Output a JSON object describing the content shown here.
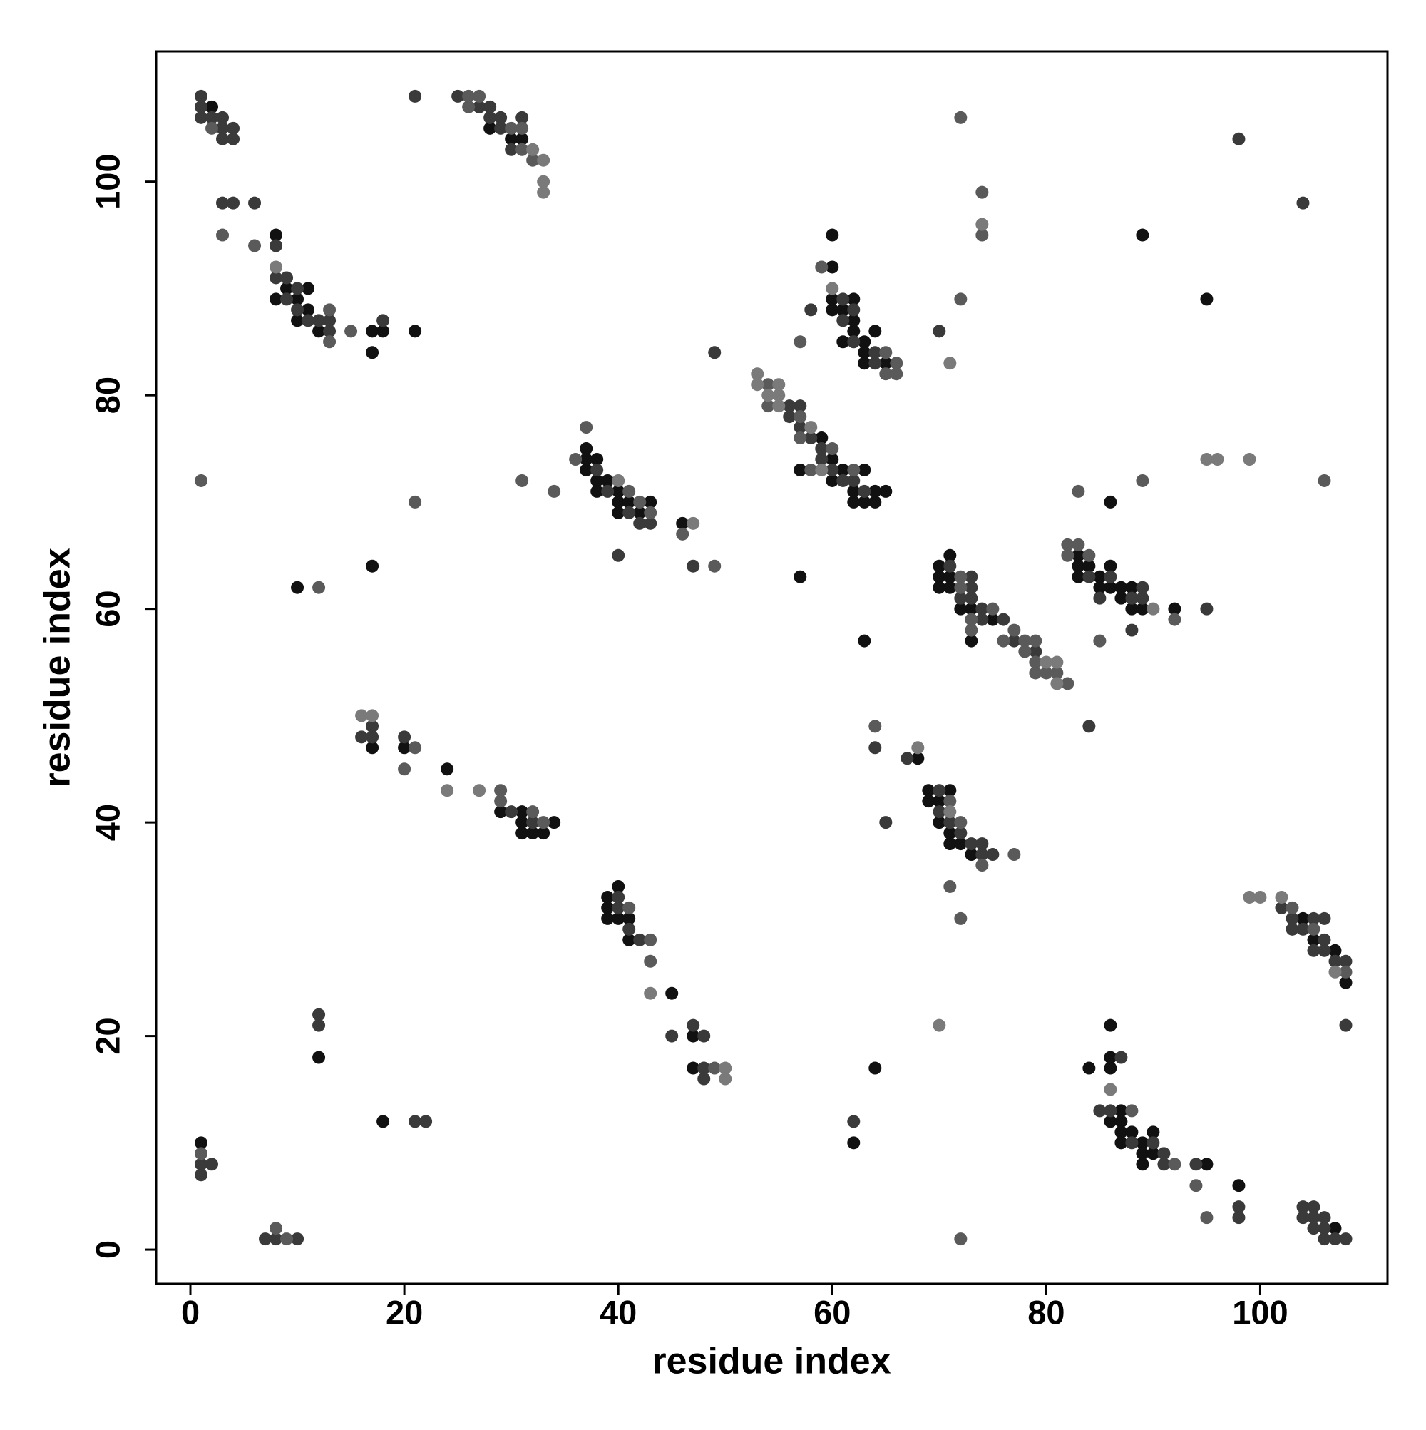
{
  "chart_data": {
    "type": "scatter",
    "xlabel": "residue index",
    "ylabel": "residue index",
    "xlim": [
      -3.2,
      111.9
    ],
    "ylim": [
      -3.2,
      112.2
    ],
    "xticks": [
      0,
      20,
      40,
      60,
      80,
      100
    ],
    "yticks": [
      0,
      20,
      40,
      60,
      80,
      100
    ],
    "grid": false,
    "series": [
      {
        "color": "#111111",
        "x": [
          2,
          8,
          8,
          9,
          10,
          11,
          10,
          11,
          12,
          17,
          18,
          17,
          21,
          28,
          30,
          31,
          89,
          95,
          60,
          60,
          60,
          60,
          61,
          62,
          62,
          62,
          61,
          63,
          63,
          64,
          63,
          65,
          59,
          60,
          57,
          61,
          60,
          63,
          62,
          64,
          62,
          63,
          64,
          65,
          37,
          37,
          38,
          37,
          38,
          39,
          38,
          40,
          40,
          40,
          41,
          42,
          43,
          46,
          10,
          17,
          57,
          70,
          71,
          70,
          70,
          71,
          71,
          72,
          73,
          75,
          73,
          63,
          83,
          83,
          84,
          83,
          85,
          86,
          85,
          86,
          87,
          87,
          88,
          88,
          89,
          92,
          86,
          17,
          20,
          24,
          29,
          31,
          31,
          34,
          31,
          32,
          33,
          68,
          69,
          71,
          69,
          70,
          70,
          71,
          71,
          72,
          73,
          39,
          40,
          39,
          39,
          40,
          41,
          41,
          45,
          47,
          47,
          12,
          18,
          62,
          64,
          86,
          86,
          86,
          84,
          87,
          86,
          87,
          87,
          88,
          87,
          89,
          90,
          89,
          90,
          89,
          95,
          98,
          104,
          105,
          107,
          108,
          107,
          1
        ],
        "values": [
          107,
          95,
          89,
          90,
          89,
          90,
          87,
          88,
          86,
          86,
          86,
          84,
          86,
          105,
          104,
          104,
          95,
          89,
          95,
          92,
          89,
          88,
          88,
          89,
          87,
          86,
          85,
          85,
          84,
          86,
          83,
          83,
          76,
          74,
          73,
          73,
          72,
          73,
          71,
          71,
          70,
          70,
          70,
          71,
          75,
          74,
          74,
          73,
          72,
          72,
          71,
          71,
          70,
          69,
          70,
          69,
          70,
          68,
          62,
          64,
          63,
          64,
          65,
          63,
          62,
          63,
          62,
          60,
          60,
          59,
          57,
          57,
          65,
          64,
          64,
          63,
          63,
          64,
          62,
          62,
          62,
          61,
          62,
          60,
          60,
          60,
          70,
          47,
          47,
          45,
          41,
          41,
          40,
          40,
          39,
          39,
          39,
          46,
          43,
          43,
          42,
          42,
          40,
          39,
          38,
          38,
          37,
          33,
          34,
          32,
          31,
          31,
          31,
          29,
          24,
          20,
          17,
          18,
          12,
          10,
          17,
          21,
          18,
          17,
          17,
          13,
          12,
          12,
          11,
          11,
          10,
          10,
          11,
          9,
          9,
          8,
          8,
          6,
          31,
          29,
          28,
          25,
          2,
          10
        ]
      },
      {
        "color": "#3a3a3a",
        "x": [
          1,
          1,
          1,
          2,
          3,
          3,
          3,
          4,
          4,
          3,
          4,
          6,
          8,
          8,
          9,
          9,
          10,
          10,
          11,
          12,
          13,
          13,
          18,
          21,
          25,
          27,
          28,
          28,
          29,
          29,
          30,
          31,
          98,
          104,
          70,
          58,
          61,
          62,
          61,
          62,
          64,
          64,
          49,
          56,
          57,
          56,
          57,
          58,
          59,
          59,
          60,
          61,
          62,
          63,
          38,
          39,
          41,
          42,
          43,
          40,
          47,
          71,
          73,
          72,
          73,
          73,
          74,
          74,
          76,
          77,
          79,
          84,
          86,
          85,
          88,
          89,
          89,
          95,
          88,
          84,
          16,
          17,
          17,
          20,
          30,
          32,
          64,
          65,
          67,
          70,
          70,
          71,
          72,
          73,
          74,
          74,
          75,
          40,
          40,
          41,
          42,
          45,
          47,
          48,
          48,
          48,
          12,
          12,
          21,
          22,
          62,
          87,
          85,
          86,
          88,
          90,
          91,
          91,
          94,
          98,
          98,
          102,
          103,
          103,
          104,
          105,
          106,
          106,
          105,
          106,
          107,
          108,
          108,
          104,
          105,
          104,
          105,
          106,
          105,
          106,
          106,
          107,
          108,
          1,
          2,
          1,
          7,
          8,
          10
        ],
        "values": [
          108,
          107,
          106,
          106,
          106,
          105,
          104,
          105,
          104,
          98,
          98,
          98,
          94,
          91,
          91,
          89,
          90,
          88,
          87,
          87,
          87,
          86,
          87,
          108,
          108,
          107,
          107,
          106,
          106,
          105,
          103,
          106,
          104,
          98,
          86,
          88,
          89,
          88,
          87,
          85,
          84,
          83,
          84,
          79,
          79,
          78,
          77,
          76,
          75,
          74,
          73,
          72,
          72,
          71,
          73,
          71,
          69,
          68,
          68,
          65,
          64,
          64,
          63,
          61,
          62,
          61,
          60,
          59,
          59,
          57,
          56,
          63,
          63,
          61,
          61,
          62,
          61,
          60,
          58,
          49,
          48,
          49,
          48,
          48,
          41,
          40,
          47,
          40,
          46,
          43,
          41,
          40,
          39,
          38,
          38,
          37,
          37,
          33,
          32,
          30,
          29,
          20,
          21,
          20,
          17,
          16,
          22,
          21,
          12,
          12,
          12,
          18,
          13,
          13,
          10,
          10,
          9,
          8,
          8,
          4,
          3,
          32,
          31,
          30,
          30,
          31,
          31,
          29,
          28,
          28,
          27,
          27,
          21,
          4,
          4,
          3,
          3,
          3,
          2,
          2,
          1,
          1,
          1,
          8,
          8,
          7,
          1,
          1,
          1
        ]
      },
      {
        "color": "#5a5a5a",
        "x": [
          2,
          3,
          6,
          13,
          13,
          15,
          26,
          26,
          27,
          30,
          31,
          31,
          32,
          72,
          74,
          74,
          72,
          59,
          65,
          65,
          66,
          66,
          57,
          54,
          54,
          57,
          57,
          60,
          58,
          62,
          36,
          37,
          41,
          42,
          43,
          46,
          49,
          34,
          31,
          21,
          1,
          12,
          72,
          72,
          75,
          73,
          73,
          76,
          77,
          78,
          78,
          79,
          79,
          79,
          80,
          81,
          82,
          82,
          82,
          83,
          84,
          92,
          85,
          83,
          89,
          106,
          20,
          21,
          29,
          29,
          32,
          33,
          64,
          71,
          72,
          74,
          77,
          71,
          72,
          41,
          43,
          43,
          49,
          88,
          92,
          94,
          95,
          103,
          105,
          108,
          1,
          8,
          9,
          72
        ],
        "values": [
          105,
          95,
          94,
          88,
          85,
          86,
          108,
          107,
          108,
          105,
          105,
          103,
          102,
          106,
          99,
          95,
          89,
          92,
          84,
          82,
          83,
          82,
          85,
          81,
          79,
          78,
          76,
          75,
          73,
          73,
          74,
          77,
          71,
          70,
          69,
          67,
          64,
          71,
          72,
          70,
          72,
          62,
          63,
          62,
          60,
          59,
          58,
          57,
          58,
          57,
          56,
          57,
          55,
          54,
          54,
          54,
          53,
          66,
          65,
          66,
          65,
          59,
          57,
          71,
          72,
          72,
          45,
          47,
          43,
          42,
          41,
          40,
          49,
          42,
          40,
          36,
          37,
          34,
          31,
          32,
          29,
          27,
          17,
          13,
          8,
          6,
          3,
          32,
          30,
          26,
          9,
          2,
          1,
          1
        ]
      },
      {
        "color": "#7a7a7a",
        "x": [
          8,
          32,
          33,
          33,
          33,
          74,
          71,
          60,
          53,
          53,
          55,
          54,
          55,
          55,
          58,
          59,
          40,
          47,
          80,
          81,
          81,
          90,
          95,
          96,
          99,
          16,
          17,
          24,
          27,
          68,
          71,
          43,
          50,
          50,
          70,
          86,
          99,
          100,
          102,
          107
        ],
        "values": [
          92,
          103,
          102,
          100,
          99,
          96,
          83,
          90,
          82,
          81,
          81,
          80,
          80,
          79,
          77,
          73,
          72,
          68,
          55,
          55,
          53,
          60,
          74,
          74,
          74,
          50,
          50,
          43,
          43,
          47,
          41,
          24,
          17,
          16,
          21,
          15,
          33,
          33,
          33,
          26
        ]
      }
    ]
  }
}
